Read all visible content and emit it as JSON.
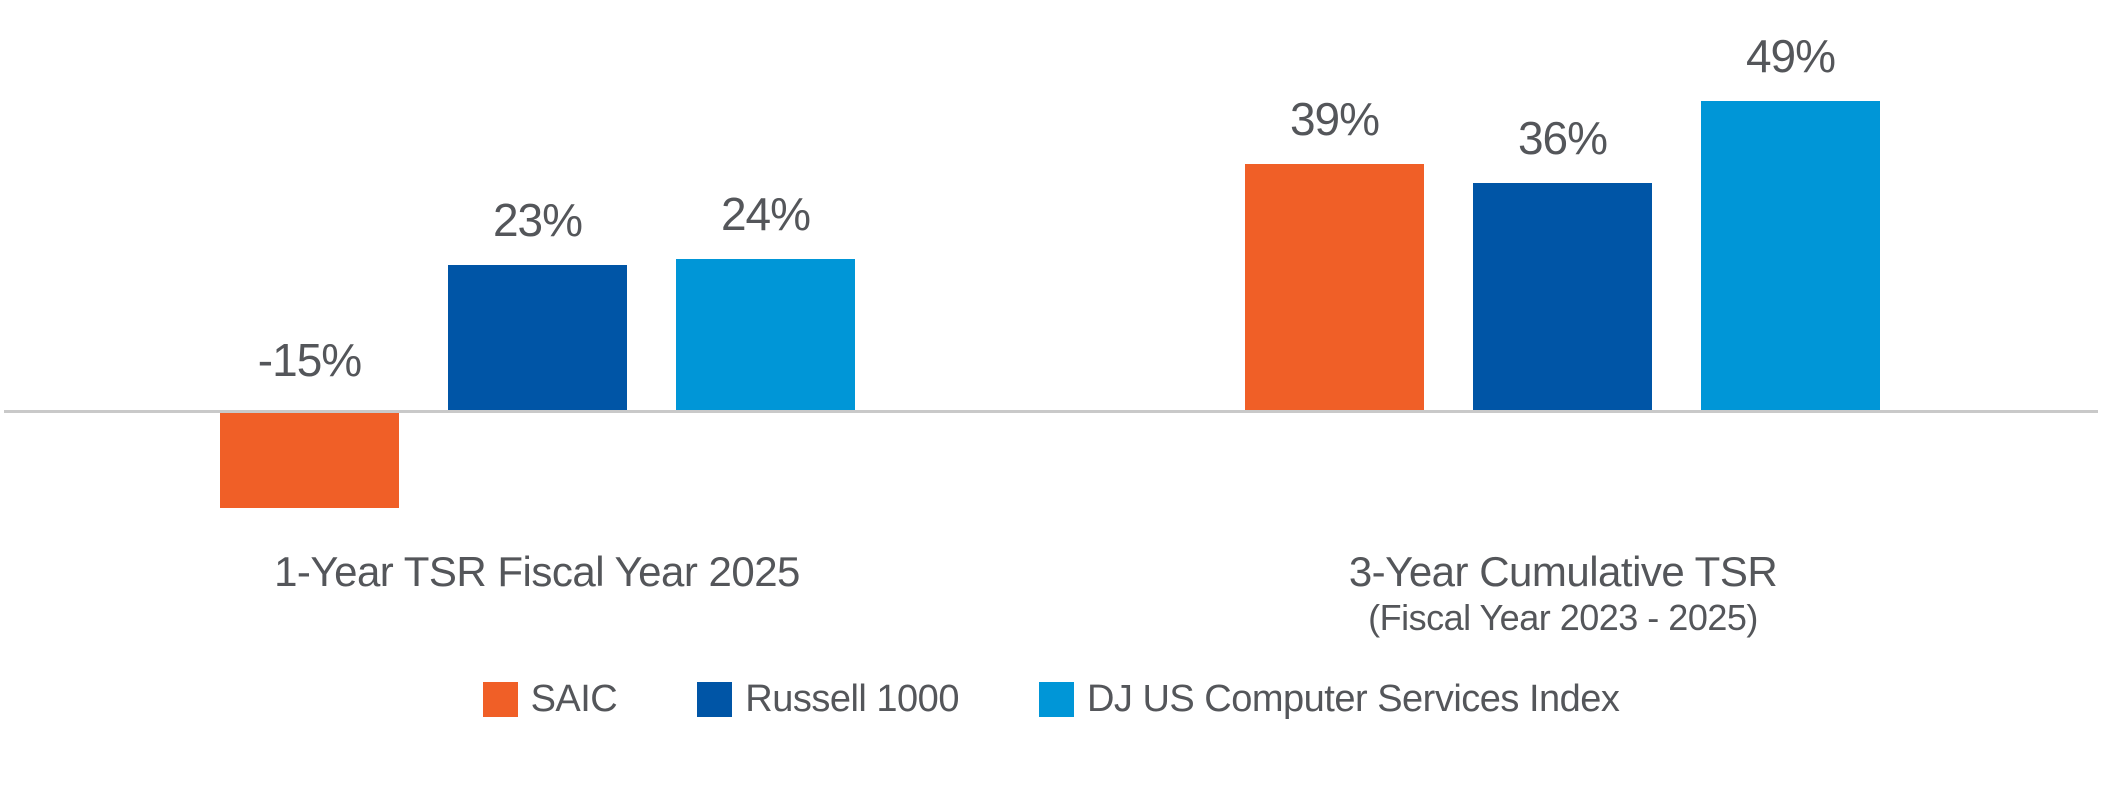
{
  "colors": {
    "saic_orange": "#F05F27",
    "russell_dark_blue": "#0055A6",
    "dj_light_blue": "#0096D7",
    "text_gray": "#54565A",
    "axis_gray": "#C9C9C9",
    "background": "#FFFFFF"
  },
  "chart_data": {
    "type": "bar",
    "categories": [
      "1-Year TSR Fiscal Year 2025",
      "3-Year Cumulative TSR"
    ],
    "category_subtitles": [
      "",
      "(Fiscal Year 2023 - 2025)"
    ],
    "series": [
      {
        "name": "SAIC",
        "color": "#F05F27",
        "values": [
          -15,
          39
        ],
        "labels": [
          "-15%",
          "39%"
        ]
      },
      {
        "name": "Russell 1000",
        "color": "#0055A6",
        "values": [
          23,
          36
        ],
        "labels": [
          "23%",
          "36%"
        ]
      },
      {
        "name": "DJ US Computer Services Index",
        "color": "#0096D7",
        "values": [
          24,
          49
        ],
        "labels": [
          "24%",
          "49%"
        ]
      }
    ],
    "ylim": [
      -20,
      55
    ],
    "y_axis_visible": false,
    "grid": false,
    "data_labels": true,
    "legend_position": "bottom"
  },
  "legend": {
    "items": [
      {
        "label": "SAIC"
      },
      {
        "label": "Russell 1000"
      },
      {
        "label": "DJ US Computer Services Index"
      }
    ]
  }
}
